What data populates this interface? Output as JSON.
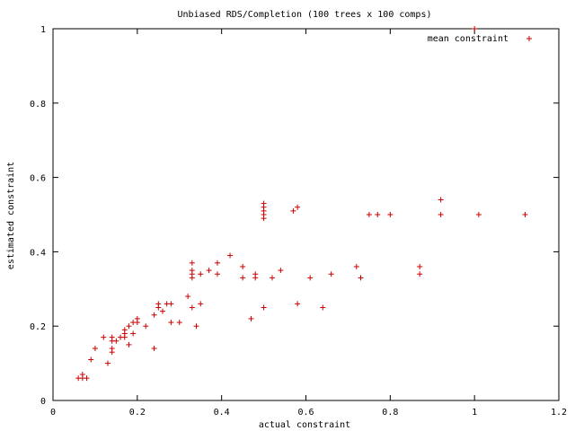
{
  "chart_data": {
    "type": "scatter",
    "title": "Unbiased RDS/Completion (100 trees x 100 comps)",
    "xlabel": "actual constraint",
    "ylabel": "estimated constraint",
    "xlim": [
      0,
      1.2
    ],
    "ylim": [
      0,
      1
    ],
    "x_ticks": [
      "0",
      "0.2",
      "0.4",
      "0.6",
      "0.8",
      "1",
      "1.2"
    ],
    "y_ticks": [
      "0",
      "0.2",
      "0.4",
      "0.6",
      "0.8",
      "1"
    ],
    "x_tick_values": [
      0,
      0.2,
      0.4,
      0.6,
      0.8,
      1.0,
      1.2
    ],
    "y_tick_values": [
      0,
      0.2,
      0.4,
      0.6,
      0.8,
      1.0
    ],
    "grid": false,
    "legend_position": "top-right",
    "marker_color": "#cc0000",
    "series": [
      {
        "name": "mean constraint",
        "points": [
          [
            0.06,
            0.06
          ],
          [
            0.07,
            0.06
          ],
          [
            0.07,
            0.07
          ],
          [
            0.08,
            0.06
          ],
          [
            0.09,
            0.11
          ],
          [
            0.1,
            0.14
          ],
          [
            0.12,
            0.17
          ],
          [
            0.13,
            0.1
          ],
          [
            0.14,
            0.13
          ],
          [
            0.14,
            0.14
          ],
          [
            0.14,
            0.16
          ],
          [
            0.14,
            0.17
          ],
          [
            0.15,
            0.16
          ],
          [
            0.16,
            0.17
          ],
          [
            0.17,
            0.17
          ],
          [
            0.17,
            0.18
          ],
          [
            0.17,
            0.19
          ],
          [
            0.18,
            0.15
          ],
          [
            0.18,
            0.2
          ],
          [
            0.19,
            0.18
          ],
          [
            0.19,
            0.21
          ],
          [
            0.2,
            0.21
          ],
          [
            0.2,
            0.22
          ],
          [
            0.22,
            0.2
          ],
          [
            0.24,
            0.14
          ],
          [
            0.24,
            0.23
          ],
          [
            0.25,
            0.25
          ],
          [
            0.25,
            0.26
          ],
          [
            0.26,
            0.24
          ],
          [
            0.27,
            0.26
          ],
          [
            0.28,
            0.21
          ],
          [
            0.28,
            0.26
          ],
          [
            0.3,
            0.21
          ],
          [
            0.32,
            0.28
          ],
          [
            0.33,
            0.25
          ],
          [
            0.33,
            0.33
          ],
          [
            0.33,
            0.34
          ],
          [
            0.33,
            0.35
          ],
          [
            0.33,
            0.37
          ],
          [
            0.34,
            0.2
          ],
          [
            0.35,
            0.26
          ],
          [
            0.35,
            0.34
          ],
          [
            0.37,
            0.35
          ],
          [
            0.39,
            0.34
          ],
          [
            0.39,
            0.37
          ],
          [
            0.42,
            0.39
          ],
          [
            0.45,
            0.33
          ],
          [
            0.45,
            0.36
          ],
          [
            0.47,
            0.22
          ],
          [
            0.48,
            0.33
          ],
          [
            0.48,
            0.34
          ],
          [
            0.5,
            0.25
          ],
          [
            0.5,
            0.49
          ],
          [
            0.5,
            0.5
          ],
          [
            0.5,
            0.51
          ],
          [
            0.5,
            0.52
          ],
          [
            0.5,
            0.53
          ],
          [
            0.52,
            0.33
          ],
          [
            0.54,
            0.35
          ],
          [
            0.57,
            0.51
          ],
          [
            0.58,
            0.26
          ],
          [
            0.58,
            0.52
          ],
          [
            0.61,
            0.33
          ],
          [
            0.64,
            0.25
          ],
          [
            0.66,
            0.34
          ],
          [
            0.72,
            0.36
          ],
          [
            0.73,
            0.33
          ],
          [
            0.75,
            0.5
          ],
          [
            0.77,
            0.5
          ],
          [
            0.8,
            0.5
          ],
          [
            0.87,
            0.34
          ],
          [
            0.87,
            0.36
          ],
          [
            0.92,
            0.5
          ],
          [
            0.92,
            0.54
          ],
          [
            1.0,
            1.0
          ],
          [
            1.01,
            0.5
          ],
          [
            1.12,
            0.5
          ]
        ]
      }
    ]
  }
}
